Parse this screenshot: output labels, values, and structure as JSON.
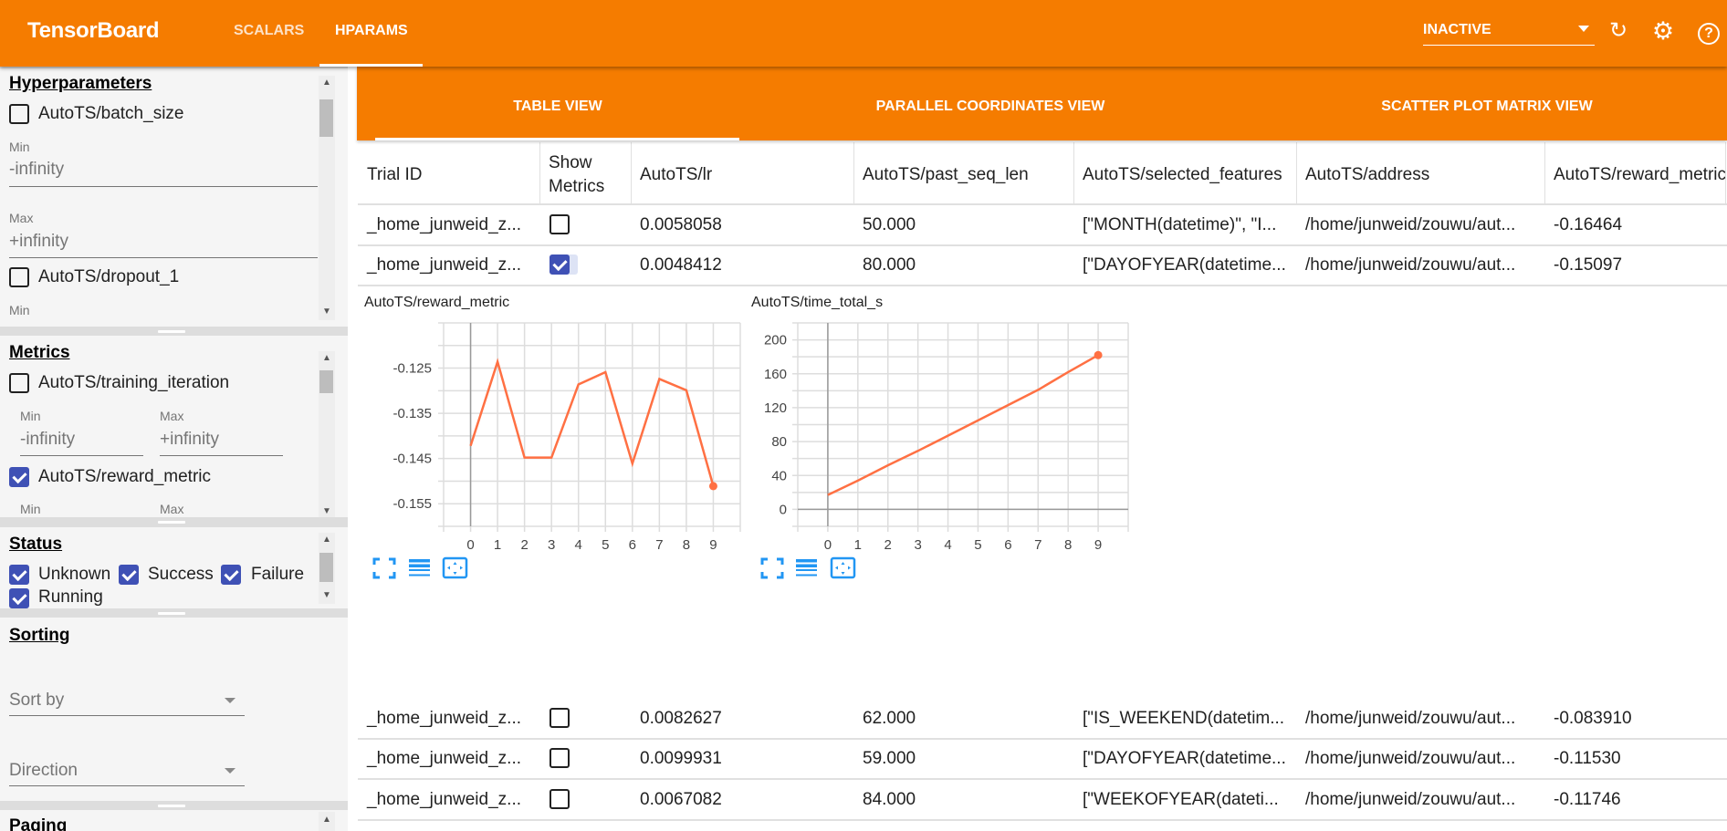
{
  "header": {
    "title": "TensorBoard",
    "tabs": [
      {
        "label": "SCALARS",
        "active": false
      },
      {
        "label": "HPARAMS",
        "active": true
      }
    ],
    "run_select": "INACTIVE",
    "icons": [
      "refresh-icon",
      "settings-icon",
      "help-icon"
    ],
    "color": "#f57c00"
  },
  "sidebar": {
    "hyperparameters": {
      "title": "Hyperparameters",
      "items": [
        {
          "label": "AutoTS/batch_size",
          "checked": false,
          "min_label": "Min",
          "min_value": "-infinity",
          "max_label": "Max",
          "max_value": "+infinity"
        },
        {
          "label": "AutoTS/dropout_1",
          "checked": false,
          "min_label": "Min"
        }
      ]
    },
    "metrics": {
      "title": "Metrics",
      "items": [
        {
          "label": "AutoTS/training_iteration",
          "checked": false,
          "min_label": "Min",
          "min_value": "-infinity",
          "max_label": "Max",
          "max_value": "+infinity"
        },
        {
          "label": "AutoTS/reward_metric",
          "checked": true,
          "min_label": "Min",
          "max_label": "Max"
        }
      ]
    },
    "status": {
      "title": "Status",
      "items": [
        {
          "label": "Unknown",
          "checked": true
        },
        {
          "label": "Success",
          "checked": true
        },
        {
          "label": "Failure",
          "checked": true
        },
        {
          "label": "Running",
          "checked": true
        }
      ]
    },
    "sorting": {
      "title": "Sorting",
      "sort_by": "Sort by",
      "direction": "Direction"
    },
    "paging": {
      "title": "Paging"
    }
  },
  "views": {
    "tabs": [
      {
        "label": "TABLE VIEW",
        "active": true
      },
      {
        "label": "PARALLEL COORDINATES VIEW",
        "active": false
      },
      {
        "label": "SCATTER PLOT MATRIX VIEW",
        "active": false
      }
    ]
  },
  "table": {
    "columns": [
      "Trial ID",
      "Show Metrics",
      "AutoTS/lr",
      "AutoTS/past_seq_len",
      "AutoTS/selected_features",
      "AutoTS/address",
      "AutoTS/reward_metric"
    ],
    "rows": [
      {
        "trial": "_home_junweid_z...",
        "show": false,
        "lr": "0.0058058",
        "past": "50.000",
        "features": "[\"MONTH(datetime)\", \"I...",
        "address": "/home/junweid/zouwu/aut...",
        "reward": "-0.16464"
      },
      {
        "trial": "_home_junweid_z...",
        "show": true,
        "lr": "0.0048412",
        "past": "80.000",
        "features": "[\"DAYOFYEAR(datetime...",
        "address": "/home/junweid/zouwu/aut...",
        "reward": "-0.15097"
      },
      {
        "trial": "_home_junweid_z...",
        "show": false,
        "lr": "0.0082627",
        "past": "62.000",
        "features": "[\"IS_WEEKEND(datetim...",
        "address": "/home/junweid/zouwu/aut...",
        "reward": "-0.083910"
      },
      {
        "trial": "_home_junweid_z...",
        "show": false,
        "lr": "0.0099931",
        "past": "59.000",
        "features": "[\"DAYOFYEAR(datetime...",
        "address": "/home/junweid/zouwu/aut...",
        "reward": "-0.11530"
      },
      {
        "trial": "_home_junweid_z...",
        "show": false,
        "lr": "0.0067082",
        "past": "84.000",
        "features": "[\"WEEKOFYEAR(dateti...",
        "address": "/home/junweid/zouwu/aut...",
        "reward": "-0.11746"
      }
    ]
  },
  "chart_data": [
    {
      "type": "line",
      "title": "AutoTS/reward_metric",
      "x": [
        0,
        1,
        2,
        3,
        4,
        5,
        6,
        7,
        8,
        9
      ],
      "values": [
        -0.1422,
        -0.1236,
        -0.1448,
        -0.1448,
        -0.1286,
        -0.1259,
        -0.1461,
        -0.1274,
        -0.1299,
        -0.1511
      ],
      "xlim": [
        -1,
        10
      ],
      "ylim": [
        -0.16,
        -0.115
      ],
      "yticks": [
        "-0.125",
        "-0.135",
        "-0.145",
        "-0.155"
      ],
      "xticks": [
        "0",
        "1",
        "2",
        "3",
        "4",
        "5",
        "6",
        "7",
        "8",
        "9"
      ],
      "grid": true,
      "color": "#ff7043"
    },
    {
      "type": "line",
      "title": "AutoTS/time_total_s",
      "x": [
        0,
        1,
        2,
        3,
        4,
        5,
        6,
        7,
        8,
        9
      ],
      "values": [
        17,
        34,
        52,
        69,
        87,
        105,
        123,
        141,
        162,
        182
      ],
      "xlim": [
        -1,
        10
      ],
      "ylim": [
        -20,
        220
      ],
      "yticks": [
        "0",
        "40",
        "80",
        "120",
        "160",
        "200"
      ],
      "xticks": [
        "0",
        "1",
        "2",
        "3",
        "4",
        "5",
        "6",
        "7",
        "8",
        "9"
      ],
      "grid": true,
      "color": "#ff7043"
    }
  ],
  "chart_tools": [
    "fullscreen-icon",
    "legend-icon",
    "fit-domain-icon"
  ]
}
